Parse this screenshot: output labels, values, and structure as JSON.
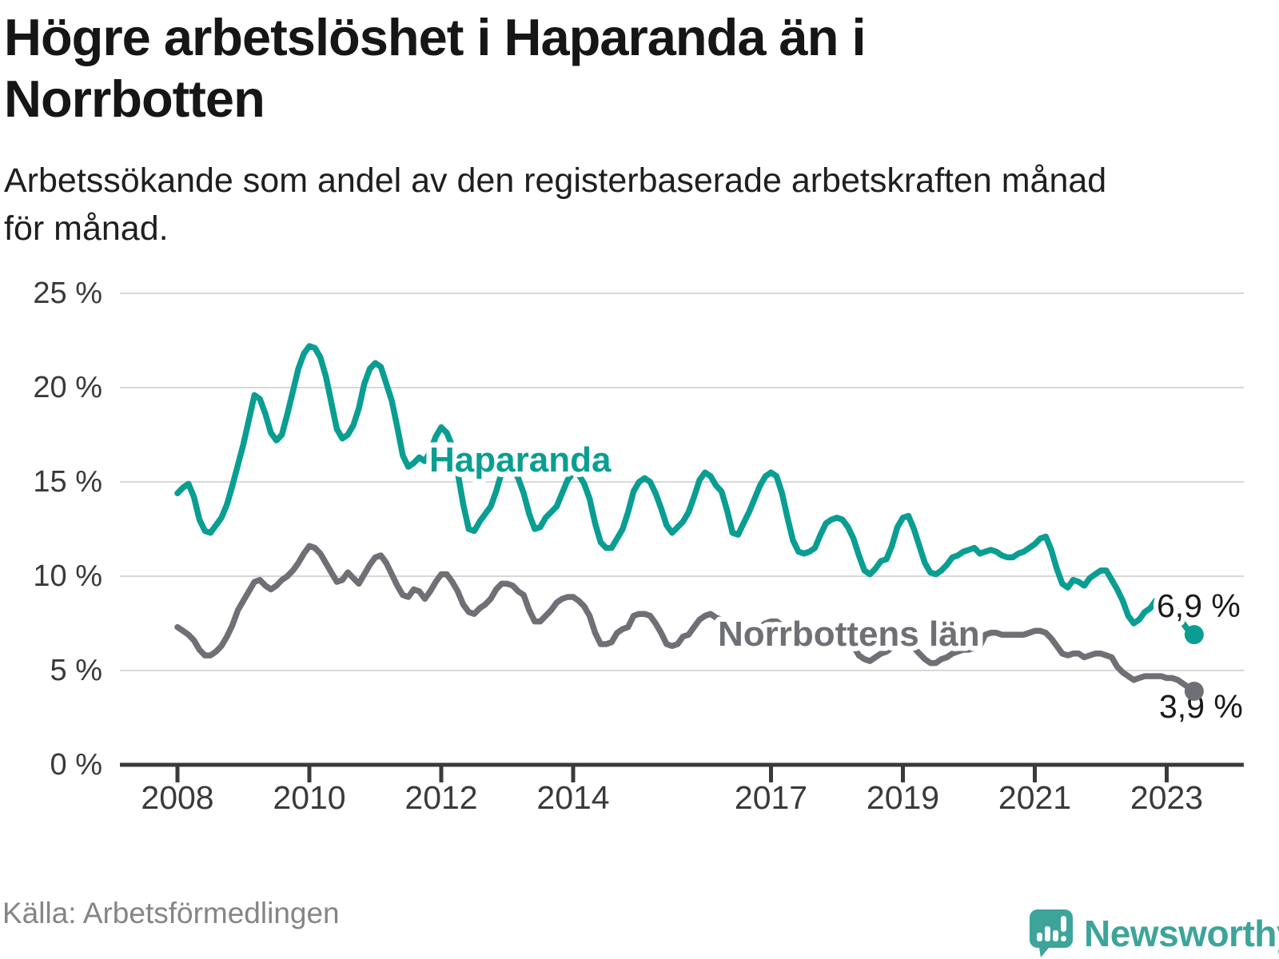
{
  "header": {
    "title": "Högre arbetslöshet i Haparanda än i Norrbotten",
    "title_lines": [
      "Högre arbetslöshet i Haparanda än i",
      "Norrbotten"
    ],
    "subtitle": "Arbetssökande som andel av den registerbaserade arbetskraften månad för månad.",
    "subtitle_lines": [
      "Arbetssökande som andel av den registerbaserade arbetskraften månad",
      "för månad."
    ]
  },
  "footer": {
    "source": "Källa: Arbetsförmedlingen",
    "brand": "Newsworthy"
  },
  "colors": {
    "haparanda": "#0a9e92",
    "norrbotten": "#6f7076",
    "axis": "#3a3a3a",
    "grid": "#d8d8d8",
    "end_label_text": "#1a1a1a",
    "brand_teal": "#3da49b",
    "muted_text": "#858585"
  },
  "chart_data": {
    "type": "line",
    "title": "Högre arbetslöshet i Haparanda än i Norrbotten",
    "subtitle": "Arbetssökande som andel av den registerbaserade arbetskraften månad för månad.",
    "source": "Källa: Arbetsförmedlingen",
    "frequency": "monthly",
    "x_start": "2008-01",
    "x_end": "2023-06",
    "xlabel": "",
    "ylabel": "",
    "ylim": [
      0,
      25
    ],
    "grid": "horizontal",
    "legend_position": "inline-labels",
    "y_ticks": [
      {
        "value": 0,
        "label": "0 %"
      },
      {
        "value": 5,
        "label": "5 %"
      },
      {
        "value": 10,
        "label": "10 %"
      },
      {
        "value": 15,
        "label": "15 %"
      },
      {
        "value": 20,
        "label": "20 %"
      },
      {
        "value": 25,
        "label": "25 %"
      }
    ],
    "x_ticks": [
      {
        "value": 2008,
        "label": "2008"
      },
      {
        "value": 2010,
        "label": "2010"
      },
      {
        "value": 2012,
        "label": "2012"
      },
      {
        "value": 2014,
        "label": "2014"
      },
      {
        "value": 2017,
        "label": "2017"
      },
      {
        "value": 2019,
        "label": "2019"
      },
      {
        "value": 2021,
        "label": "2021"
      },
      {
        "value": 2023,
        "label": "2023"
      }
    ],
    "series": [
      {
        "name": "Haparanda",
        "color": "#0a9e92",
        "end_label": "6,9 %",
        "last_value": 6.9,
        "values": [
          14.4,
          14.7,
          14.9,
          14.2,
          13.0,
          12.4,
          12.3,
          12.7,
          13.1,
          13.8,
          14.8,
          15.9,
          17.0,
          18.3,
          19.6,
          19.4,
          18.6,
          17.6,
          17.2,
          17.5,
          18.6,
          19.8,
          21.0,
          21.8,
          22.2,
          22.1,
          21.6,
          20.6,
          19.2,
          17.8,
          17.3,
          17.5,
          18.0,
          18.9,
          20.2,
          21.0,
          21.3,
          21.1,
          20.2,
          19.3,
          17.9,
          16.4,
          15.8,
          16.0,
          16.3,
          16.1,
          16.6,
          17.4,
          17.9,
          17.6,
          16.9,
          15.5,
          13.8,
          12.5,
          12.4,
          12.9,
          13.3,
          13.7,
          14.5,
          15.5,
          15.9,
          15.7,
          15.2,
          14.4,
          13.3,
          12.5,
          12.6,
          13.1,
          13.4,
          13.7,
          14.4,
          15.1,
          15.5,
          15.4,
          14.9,
          14.1,
          12.8,
          11.8,
          11.5,
          11.5,
          12.0,
          12.5,
          13.4,
          14.5,
          15.0,
          15.2,
          15.0,
          14.4,
          13.6,
          12.7,
          12.3,
          12.6,
          12.9,
          13.4,
          14.2,
          15.1,
          15.5,
          15.3,
          14.8,
          14.5,
          13.5,
          12.3,
          12.2,
          12.8,
          13.4,
          14.1,
          14.8,
          15.3,
          15.5,
          15.3,
          14.4,
          13.1,
          11.9,
          11.3,
          11.2,
          11.3,
          11.5,
          12.2,
          12.8,
          13.0,
          13.1,
          13.0,
          12.6,
          12.0,
          11.1,
          10.3,
          10.1,
          10.4,
          10.8,
          10.9,
          11.6,
          12.6,
          13.1,
          13.2,
          12.5,
          11.6,
          10.7,
          10.2,
          10.1,
          10.3,
          10.6,
          11.0,
          11.1,
          11.3,
          11.4,
          11.5,
          11.2,
          11.3,
          11.4,
          11.3,
          11.1,
          11.0,
          11.0,
          11.2,
          11.3,
          11.5,
          11.7,
          12.0,
          12.1,
          11.4,
          10.4,
          9.6,
          9.4,
          9.8,
          9.7,
          9.5,
          9.9,
          10.1,
          10.3,
          10.3,
          9.8,
          9.3,
          8.7,
          7.9,
          7.5,
          7.7,
          8.1,
          8.3,
          8.7,
          8.9,
          8.8,
          8.5,
          8.1,
          7.5,
          7.1,
          6.9
        ]
      },
      {
        "name": "Norrbottens län",
        "color": "#6f7076",
        "end_label": "3,9 %",
        "last_value": 3.9,
        "values": [
          7.3,
          7.1,
          6.9,
          6.6,
          6.1,
          5.8,
          5.8,
          6.0,
          6.3,
          6.8,
          7.4,
          8.2,
          8.7,
          9.2,
          9.7,
          9.8,
          9.5,
          9.3,
          9.5,
          9.8,
          10.0,
          10.3,
          10.7,
          11.2,
          11.6,
          11.5,
          11.2,
          10.7,
          10.2,
          9.7,
          9.8,
          10.2,
          9.9,
          9.6,
          10.1,
          10.6,
          11.0,
          11.1,
          10.7,
          10.1,
          9.5,
          9.0,
          8.9,
          9.3,
          9.2,
          8.8,
          9.2,
          9.7,
          10.1,
          10.1,
          9.7,
          9.2,
          8.5,
          8.1,
          8.0,
          8.3,
          8.5,
          8.8,
          9.3,
          9.6,
          9.6,
          9.5,
          9.2,
          9.0,
          8.2,
          7.6,
          7.6,
          7.9,
          8.2,
          8.6,
          8.8,
          8.9,
          8.9,
          8.7,
          8.4,
          7.9,
          7.0,
          6.4,
          6.4,
          6.5,
          7.0,
          7.2,
          7.3,
          7.9,
          8.0,
          8.0,
          7.9,
          7.5,
          7.0,
          6.4,
          6.3,
          6.4,
          6.8,
          6.9,
          7.3,
          7.7,
          7.9,
          8.0,
          7.8,
          7.7,
          7.3,
          6.8,
          6.6,
          6.8,
          7.0,
          7.1,
          7.3,
          7.5,
          7.6,
          7.6,
          7.4,
          7.1,
          6.6,
          6.3,
          6.2,
          6.4,
          6.5,
          6.6,
          6.8,
          6.9,
          7.0,
          6.9,
          6.7,
          6.3,
          5.8,
          5.6,
          5.5,
          5.7,
          5.9,
          6.0,
          6.2,
          6.5,
          6.6,
          6.5,
          6.2,
          5.9,
          5.6,
          5.4,
          5.4,
          5.6,
          5.7,
          5.9,
          6.0,
          6.1,
          6.1,
          6.2,
          6.3,
          6.9,
          7.0,
          7.0,
          6.9,
          6.9,
          6.9,
          6.9,
          6.9,
          7.0,
          7.1,
          7.1,
          7.0,
          6.7,
          6.3,
          5.9,
          5.8,
          5.9,
          5.9,
          5.7,
          5.8,
          5.9,
          5.9,
          5.8,
          5.7,
          5.2,
          4.9,
          4.7,
          4.5,
          4.6,
          4.7,
          4.7,
          4.7,
          4.7,
          4.6,
          4.6,
          4.5,
          4.3,
          4.1,
          3.9
        ]
      }
    ]
  }
}
